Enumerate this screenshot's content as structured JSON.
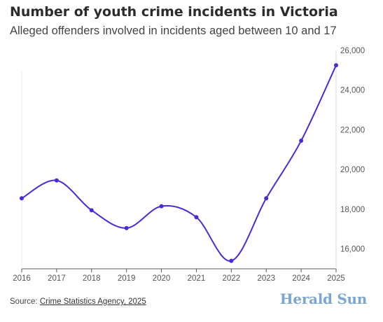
{
  "header": {
    "title": "Number of youth crime incidents in Victoria",
    "subtitle": "Alleged offenders involved in incidents aged between 10 and 17"
  },
  "footer": {
    "source_prefix": "Source: ",
    "source_link": "Crime Statistics Agency, 2025",
    "brand": "Herald Sun"
  },
  "colors": {
    "line": "#4a2ad8",
    "grid": "#e6e6e6",
    "brand": "#7aa6d0"
  },
  "chart_data": {
    "type": "line",
    "title": "Number of youth crime incidents in Victoria",
    "subtitle": "Alleged offenders involved in incidents aged between 10 and 17",
    "xlabel": "",
    "ylabel": "",
    "categories": [
      "2016",
      "2017",
      "2018",
      "2019",
      "2020",
      "2021",
      "2022",
      "2023",
      "2024",
      "2025"
    ],
    "values": [
      18550,
      19450,
      17950,
      17050,
      18150,
      17600,
      15400,
      18550,
      21450,
      25250
    ],
    "ylim": [
      15000,
      26000
    ],
    "yticks": [
      16000,
      18000,
      20000,
      22000,
      24000,
      26000
    ],
    "ytick_labels": [
      "16,000",
      "18,000",
      "20,000",
      "22,000",
      "24,000",
      "26,000"
    ],
    "grid": false,
    "y_axis_side": "right"
  }
}
